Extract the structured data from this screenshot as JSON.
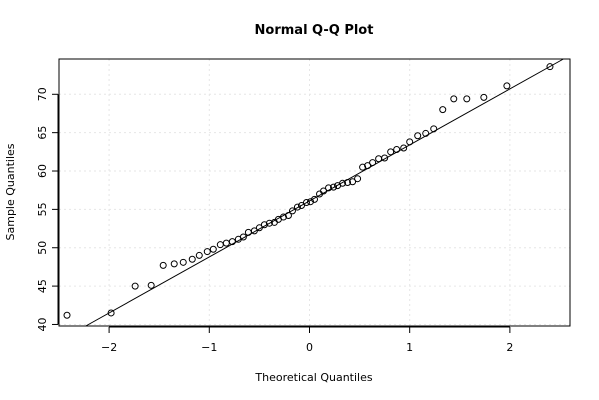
{
  "chart_data": {
    "type": "scatter",
    "title": "Normal Q-Q Plot",
    "xlabel": "Theoretical Quantiles",
    "ylabel": "Sample Quantiles",
    "xlim": [
      -2.5,
      2.6
    ],
    "ylim": [
      39.8,
      74.6
    ],
    "xticks": [
      -2,
      -1,
      0,
      1,
      2
    ],
    "xtick_labels": [
      "−2",
      "−1",
      "0",
      "1",
      "2"
    ],
    "yticks": [
      40,
      45,
      50,
      55,
      60,
      65,
      70
    ],
    "ytick_labels": [
      "40",
      "45",
      "50",
      "55",
      "60",
      "65",
      "70"
    ],
    "grid": true,
    "reference_line": {
      "intercept": 56.1,
      "slope": 7.3
    },
    "points": [
      {
        "x": -2.42,
        "y": 41.2
      },
      {
        "x": -1.98,
        "y": 41.5
      },
      {
        "x": -1.74,
        "y": 45.0
      },
      {
        "x": -1.58,
        "y": 45.1
      },
      {
        "x": -1.46,
        "y": 47.7
      },
      {
        "x": -1.35,
        "y": 47.9
      },
      {
        "x": -1.26,
        "y": 48.1
      },
      {
        "x": -1.17,
        "y": 48.5
      },
      {
        "x": -1.1,
        "y": 49.0
      },
      {
        "x": -1.02,
        "y": 49.5
      },
      {
        "x": -0.96,
        "y": 49.8
      },
      {
        "x": -0.89,
        "y": 50.4
      },
      {
        "x": -0.83,
        "y": 50.6
      },
      {
        "x": -0.77,
        "y": 50.8
      },
      {
        "x": -0.71,
        "y": 51.1
      },
      {
        "x": -0.66,
        "y": 51.4
      },
      {
        "x": -0.61,
        "y": 52.0
      },
      {
        "x": -0.55,
        "y": 52.2
      },
      {
        "x": -0.5,
        "y": 52.6
      },
      {
        "x": -0.45,
        "y": 53.0
      },
      {
        "x": -0.4,
        "y": 53.2
      },
      {
        "x": -0.35,
        "y": 53.3
      },
      {
        "x": -0.31,
        "y": 53.7
      },
      {
        "x": -0.26,
        "y": 54.0
      },
      {
        "x": -0.21,
        "y": 54.2
      },
      {
        "x": -0.17,
        "y": 54.8
      },
      {
        "x": -0.12,
        "y": 55.3
      },
      {
        "x": -0.08,
        "y": 55.5
      },
      {
        "x": -0.03,
        "y": 55.9
      },
      {
        "x": 0.01,
        "y": 56.0
      },
      {
        "x": 0.05,
        "y": 56.3
      },
      {
        "x": 0.1,
        "y": 57.0
      },
      {
        "x": 0.14,
        "y": 57.4
      },
      {
        "x": 0.19,
        "y": 57.8
      },
      {
        "x": 0.24,
        "y": 57.9
      },
      {
        "x": 0.28,
        "y": 58.1
      },
      {
        "x": 0.33,
        "y": 58.4
      },
      {
        "x": 0.38,
        "y": 58.5
      },
      {
        "x": 0.43,
        "y": 58.6
      },
      {
        "x": 0.48,
        "y": 59.0
      },
      {
        "x": 0.53,
        "y": 60.5
      },
      {
        "x": 0.58,
        "y": 60.7
      },
      {
        "x": 0.63,
        "y": 61.1
      },
      {
        "x": 0.69,
        "y": 61.6
      },
      {
        "x": 0.75,
        "y": 61.7
      },
      {
        "x": 0.81,
        "y": 62.5
      },
      {
        "x": 0.87,
        "y": 62.8
      },
      {
        "x": 0.94,
        "y": 63.0
      },
      {
        "x": 1.0,
        "y": 63.8
      },
      {
        "x": 1.08,
        "y": 64.6
      },
      {
        "x": 1.16,
        "y": 64.9
      },
      {
        "x": 1.24,
        "y": 65.5
      },
      {
        "x": 1.33,
        "y": 68.0
      },
      {
        "x": 1.44,
        "y": 69.4
      },
      {
        "x": 1.57,
        "y": 69.4
      },
      {
        "x": 1.74,
        "y": 69.6
      },
      {
        "x": 1.97,
        "y": 71.1
      },
      {
        "x": 2.4,
        "y": 73.6
      }
    ]
  }
}
